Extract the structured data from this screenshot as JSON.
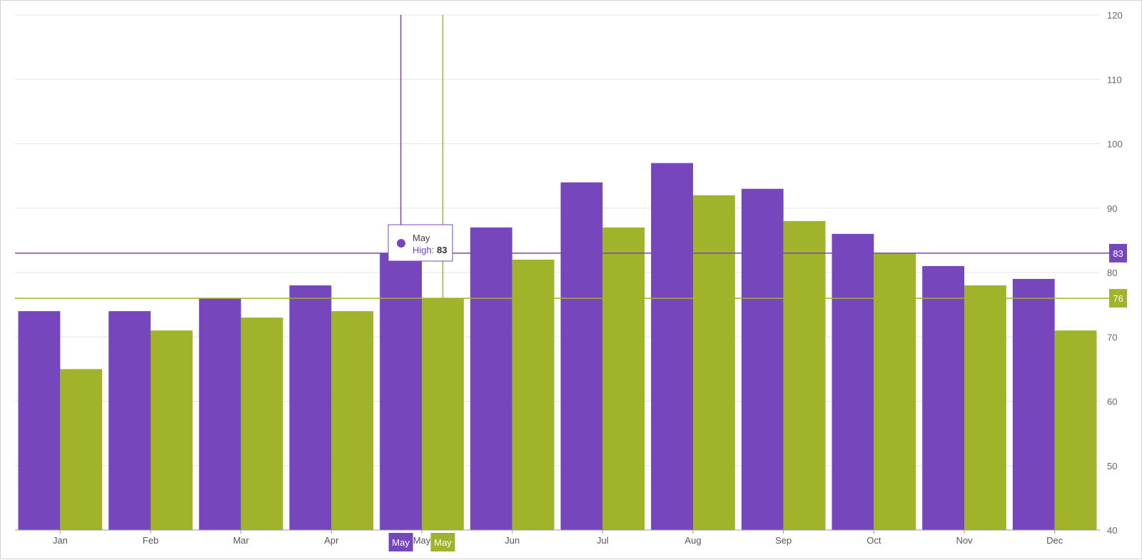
{
  "chart_data": {
    "type": "bar",
    "categories": [
      "Jan",
      "Feb",
      "Mar",
      "Apr",
      "May",
      "Jun",
      "Jul",
      "Aug",
      "Sep",
      "Oct",
      "Nov",
      "Dec"
    ],
    "series": [
      {
        "name": "High",
        "color": "#7646BC",
        "values": [
          74,
          74,
          76,
          78,
          83,
          87,
          94,
          97,
          93,
          86,
          81,
          79
        ]
      },
      {
        "color": "#A0B32A",
        "values": [
          65,
          71,
          73,
          74,
          76,
          82,
          87,
          92,
          88,
          83,
          78,
          71
        ]
      }
    ],
    "ylim": [
      40,
      120
    ],
    "yticks": [
      40,
      50,
      60,
      70,
      80,
      90,
      100,
      110,
      120
    ],
    "y_axis_position": "right",
    "grid": "horizontal",
    "legend": "none",
    "crosshair": {
      "category": "May",
      "category_label": "May",
      "value_badges": [
        "83",
        "76"
      ]
    },
    "tooltip": {
      "title": "May",
      "label": "High",
      "value": "83"
    }
  }
}
